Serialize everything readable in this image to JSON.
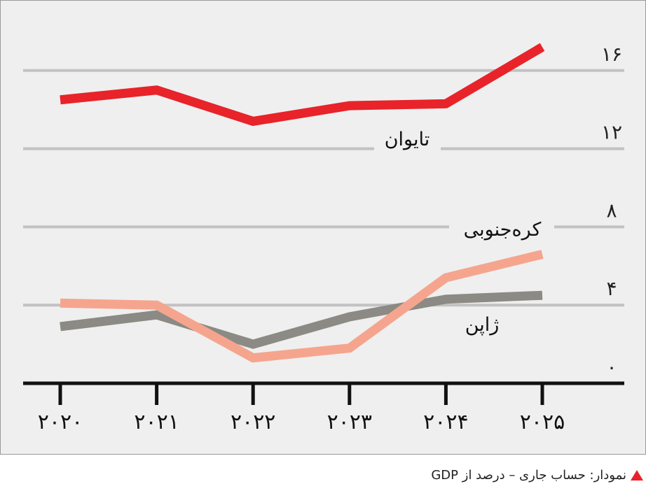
{
  "colors": {
    "taiwan": "#e8232a",
    "korea": "#f5a58e",
    "japan": "#8b8a84",
    "grid": "#c2c2c2",
    "axis": "#111111",
    "background": "#efefef",
    "caption_marker": "#e8232a"
  },
  "chart_data": {
    "type": "line",
    "x": [
      "۲۰۲۰",
      "۲۰۲۱",
      "۲۰۲۲",
      "۲۰۲۳",
      "۲۰۲۴",
      "۲۰۲۵"
    ],
    "y_ticks": [
      "۰",
      "۴",
      "۸",
      "۱۲",
      "۱۶"
    ],
    "y_tick_values": [
      0,
      4,
      8,
      12,
      16
    ],
    "ylim": [
      0,
      17.5
    ],
    "grid": true,
    "series": [
      {
        "name": "تایوان",
        "key": "taiwan",
        "values": [
          14.5,
          15.0,
          13.4,
          14.2,
          14.3,
          17.2
        ]
      },
      {
        "name": "کره‌جنوبی",
        "key": "korea",
        "values": [
          4.1,
          4.0,
          1.3,
          1.8,
          5.4,
          6.6
        ]
      },
      {
        "name": "ژاپن",
        "key": "japan",
        "values": [
          2.9,
          3.5,
          2.0,
          3.4,
          4.3,
          4.5
        ]
      }
    ]
  },
  "caption": {
    "text": "نمودار: حساب جاری – درصد از GDP"
  }
}
